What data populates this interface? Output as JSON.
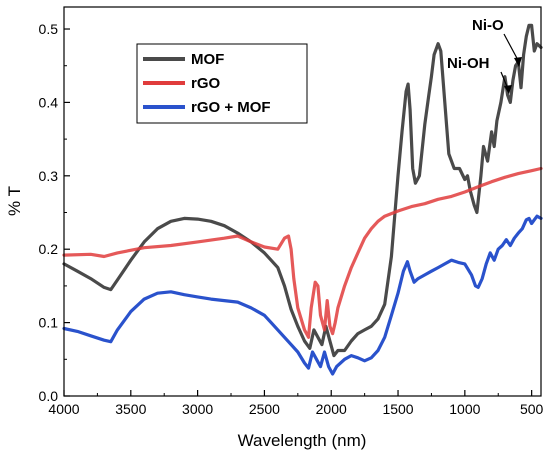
{
  "chart_data": {
    "type": "line",
    "xlabel": "Wavelength (nm)",
    "ylabel": "% T",
    "xlim": [
      4000,
      430
    ],
    "ylim": [
      0,
      0.53
    ],
    "x_ticks": [
      4000,
      3500,
      3000,
      2500,
      2000,
      1500,
      1000,
      500
    ],
    "x_tick_labels": [
      "4000",
      "3500",
      "3000",
      "2500",
      "2000",
      "1500",
      "1000",
      "500"
    ],
    "y_ticks": [
      0.0,
      0.1,
      0.2,
      0.3,
      0.4,
      0.5
    ],
    "y_tick_labels": [
      "0.0",
      "0.1",
      "0.2",
      "0.3",
      "0.4",
      "0.5"
    ],
    "legend_position": "upper-left",
    "series": [
      {
        "name": "MOF",
        "color": "#4a4a4a",
        "points": [
          [
            4000,
            0.18
          ],
          [
            3900,
            0.17
          ],
          [
            3800,
            0.16
          ],
          [
            3700,
            0.148
          ],
          [
            3650,
            0.145
          ],
          [
            3600,
            0.158
          ],
          [
            3500,
            0.185
          ],
          [
            3400,
            0.21
          ],
          [
            3300,
            0.228
          ],
          [
            3200,
            0.238
          ],
          [
            3100,
            0.242
          ],
          [
            3000,
            0.241
          ],
          [
            2900,
            0.238
          ],
          [
            2800,
            0.232
          ],
          [
            2700,
            0.222
          ],
          [
            2600,
            0.21
          ],
          [
            2500,
            0.195
          ],
          [
            2450,
            0.185
          ],
          [
            2400,
            0.175
          ],
          [
            2350,
            0.15
          ],
          [
            2300,
            0.118
          ],
          [
            2250,
            0.095
          ],
          [
            2200,
            0.075
          ],
          [
            2160,
            0.065
          ],
          [
            2130,
            0.09
          ],
          [
            2100,
            0.08
          ],
          [
            2070,
            0.07
          ],
          [
            2040,
            0.095
          ],
          [
            2010,
            0.075
          ],
          [
            1980,
            0.055
          ],
          [
            1950,
            0.062
          ],
          [
            1900,
            0.062
          ],
          [
            1850,
            0.075
          ],
          [
            1800,
            0.085
          ],
          [
            1750,
            0.09
          ],
          [
            1700,
            0.095
          ],
          [
            1650,
            0.105
          ],
          [
            1600,
            0.125
          ],
          [
            1550,
            0.19
          ],
          [
            1500,
            0.3
          ],
          [
            1470,
            0.36
          ],
          [
            1440,
            0.415
          ],
          [
            1425,
            0.425
          ],
          [
            1410,
            0.39
          ],
          [
            1390,
            0.31
          ],
          [
            1370,
            0.29
          ],
          [
            1340,
            0.3
          ],
          [
            1300,
            0.37
          ],
          [
            1270,
            0.41
          ],
          [
            1250,
            0.435
          ],
          [
            1230,
            0.465
          ],
          [
            1200,
            0.48
          ],
          [
            1180,
            0.47
          ],
          [
            1150,
            0.4
          ],
          [
            1120,
            0.33
          ],
          [
            1080,
            0.31
          ],
          [
            1040,
            0.31
          ],
          [
            1000,
            0.295
          ],
          [
            980,
            0.3
          ],
          [
            960,
            0.28
          ],
          [
            930,
            0.26
          ],
          [
            910,
            0.25
          ],
          [
            880,
            0.3
          ],
          [
            860,
            0.34
          ],
          [
            830,
            0.32
          ],
          [
            800,
            0.36
          ],
          [
            780,
            0.34
          ],
          [
            760,
            0.375
          ],
          [
            730,
            0.4
          ],
          [
            700,
            0.435
          ],
          [
            680,
            0.41
          ],
          [
            660,
            0.4
          ],
          [
            640,
            0.43
          ],
          [
            620,
            0.45
          ],
          [
            600,
            0.455
          ],
          [
            580,
            0.42
          ],
          [
            560,
            0.465
          ],
          [
            540,
            0.49
          ],
          [
            520,
            0.505
          ],
          [
            500,
            0.505
          ],
          [
            480,
            0.47
          ],
          [
            460,
            0.48
          ],
          [
            430,
            0.475
          ]
        ]
      },
      {
        "name": "rGO",
        "color": "#e03c3c",
        "points": [
          [
            4000,
            0.192
          ],
          [
            3800,
            0.193
          ],
          [
            3700,
            0.19
          ],
          [
            3600,
            0.195
          ],
          [
            3400,
            0.202
          ],
          [
            3200,
            0.205
          ],
          [
            3000,
            0.21
          ],
          [
            2800,
            0.215
          ],
          [
            2700,
            0.218
          ],
          [
            2600,
            0.21
          ],
          [
            2500,
            0.203
          ],
          [
            2400,
            0.2
          ],
          [
            2350,
            0.215
          ],
          [
            2320,
            0.218
          ],
          [
            2300,
            0.2
          ],
          [
            2280,
            0.16
          ],
          [
            2250,
            0.12
          ],
          [
            2200,
            0.09
          ],
          [
            2170,
            0.08
          ],
          [
            2150,
            0.12
          ],
          [
            2120,
            0.155
          ],
          [
            2100,
            0.15
          ],
          [
            2080,
            0.11
          ],
          [
            2050,
            0.09
          ],
          [
            2030,
            0.13
          ],
          [
            2010,
            0.095
          ],
          [
            1990,
            0.085
          ],
          [
            1970,
            0.1
          ],
          [
            1950,
            0.12
          ],
          [
            1900,
            0.15
          ],
          [
            1850,
            0.175
          ],
          [
            1800,
            0.195
          ],
          [
            1750,
            0.215
          ],
          [
            1700,
            0.228
          ],
          [
            1650,
            0.238
          ],
          [
            1600,
            0.245
          ],
          [
            1500,
            0.252
          ],
          [
            1400,
            0.258
          ],
          [
            1300,
            0.262
          ],
          [
            1200,
            0.268
          ],
          [
            1100,
            0.272
          ],
          [
            1000,
            0.278
          ],
          [
            900,
            0.285
          ],
          [
            800,
            0.292
          ],
          [
            700,
            0.298
          ],
          [
            600,
            0.303
          ],
          [
            500,
            0.307
          ],
          [
            430,
            0.31
          ]
        ]
      },
      {
        "name": "rGO + MOF",
        "color": "#2a52cc",
        "points": [
          [
            4000,
            0.092
          ],
          [
            3900,
            0.088
          ],
          [
            3800,
            0.082
          ],
          [
            3700,
            0.076
          ],
          [
            3650,
            0.074
          ],
          [
            3600,
            0.09
          ],
          [
            3500,
            0.115
          ],
          [
            3400,
            0.132
          ],
          [
            3300,
            0.14
          ],
          [
            3200,
            0.142
          ],
          [
            3100,
            0.138
          ],
          [
            3000,
            0.135
          ],
          [
            2900,
            0.132
          ],
          [
            2800,
            0.13
          ],
          [
            2700,
            0.128
          ],
          [
            2600,
            0.12
          ],
          [
            2500,
            0.11
          ],
          [
            2450,
            0.1
          ],
          [
            2400,
            0.09
          ],
          [
            2350,
            0.08
          ],
          [
            2300,
            0.07
          ],
          [
            2250,
            0.06
          ],
          [
            2200,
            0.045
          ],
          [
            2170,
            0.038
          ],
          [
            2140,
            0.06
          ],
          [
            2110,
            0.05
          ],
          [
            2080,
            0.04
          ],
          [
            2050,
            0.06
          ],
          [
            2020,
            0.04
          ],
          [
            1990,
            0.03
          ],
          [
            1960,
            0.04
          ],
          [
            1900,
            0.05
          ],
          [
            1850,
            0.055
          ],
          [
            1800,
            0.052
          ],
          [
            1750,
            0.048
          ],
          [
            1700,
            0.052
          ],
          [
            1650,
            0.062
          ],
          [
            1600,
            0.08
          ],
          [
            1550,
            0.11
          ],
          [
            1500,
            0.14
          ],
          [
            1460,
            0.17
          ],
          [
            1430,
            0.183
          ],
          [
            1410,
            0.17
          ],
          [
            1380,
            0.155
          ],
          [
            1350,
            0.16
          ],
          [
            1300,
            0.165
          ],
          [
            1250,
            0.17
          ],
          [
            1200,
            0.175
          ],
          [
            1150,
            0.18
          ],
          [
            1100,
            0.185
          ],
          [
            1050,
            0.182
          ],
          [
            1000,
            0.18
          ],
          [
            950,
            0.165
          ],
          [
            920,
            0.15
          ],
          [
            900,
            0.148
          ],
          [
            870,
            0.16
          ],
          [
            840,
            0.18
          ],
          [
            810,
            0.195
          ],
          [
            780,
            0.185
          ],
          [
            750,
            0.2
          ],
          [
            720,
            0.205
          ],
          [
            690,
            0.213
          ],
          [
            660,
            0.205
          ],
          [
            630,
            0.215
          ],
          [
            600,
            0.222
          ],
          [
            570,
            0.228
          ],
          [
            540,
            0.24
          ],
          [
            520,
            0.242
          ],
          [
            500,
            0.235
          ],
          [
            480,
            0.24
          ],
          [
            460,
            0.245
          ],
          [
            430,
            0.242
          ]
        ]
      }
    ],
    "annotations": [
      {
        "text": "Ni-O",
        "x": 640,
        "y": 0.53,
        "arrow_to": [
          590,
          0.462
        ]
      },
      {
        "text": "Ni-OH",
        "x": 775,
        "y": 0.49,
        "arrow_to": [
          678,
          0.425
        ]
      }
    ]
  }
}
